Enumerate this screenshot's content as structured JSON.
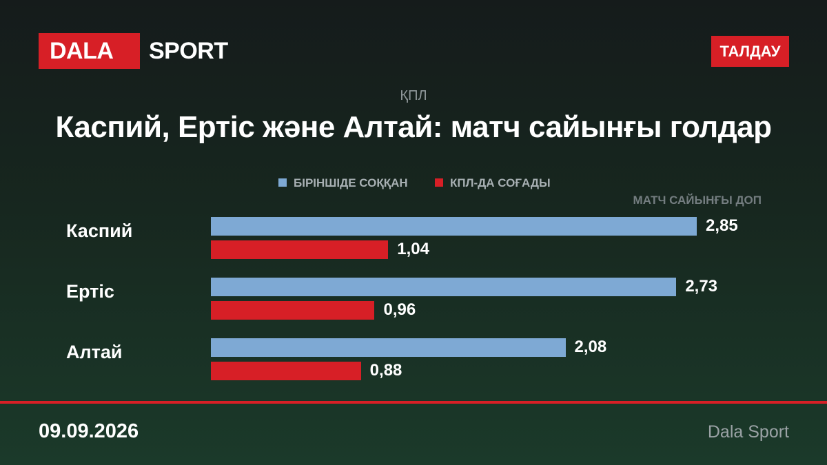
{
  "header": {
    "logo_main": "DALA",
    "logo_secondary": "SPORT",
    "tag": "ТАЛДАУ"
  },
  "colors": {
    "accent_red": "#d71f26",
    "series_blue": "#7ea9d4"
  },
  "chart_data": {
    "type": "bar",
    "orientation": "horizontal",
    "kicker": "ҚПЛ",
    "title": "Каспий, Ертіс және Алтай: матч сайынғы голдар",
    "unit_label": "МАТЧ САЙЫНҒЫ ДОП",
    "categories": [
      "Каспий",
      "Ертіс",
      "Алтай"
    ],
    "series": [
      {
        "name": "БІРІНШІДЕ СОҚҚАН",
        "color": "#7ea9d4",
        "values": [
          2.85,
          2.73,
          2.08
        ],
        "labels": [
          "2,85",
          "2,73",
          "2,08"
        ]
      },
      {
        "name": "КПЛ-ДА СОҒАДЫ",
        "color": "#d71f26",
        "values": [
          1.04,
          0.96,
          0.88
        ],
        "labels": [
          "1,04",
          "0,96",
          "0,88"
        ]
      }
    ],
    "xlim": [
      0,
      2.85
    ],
    "legend_position": "top-center",
    "grid": false
  },
  "footer": {
    "date": "09.09.2026",
    "source": "Dala Sport"
  }
}
